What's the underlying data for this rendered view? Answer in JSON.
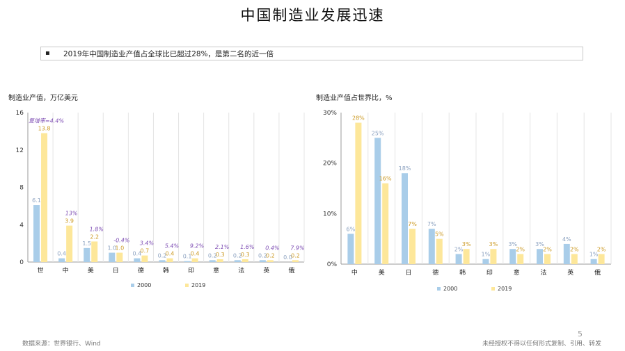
{
  "page": {
    "title": "中国制造业发展迅速",
    "note_bullet": "▪",
    "note": "2019年中国制造业产值占全球比已超过28%，是第二名的近一倍",
    "source": "数据来源：世界银行、Wind",
    "disclaimer": "未经授权不得以任何形式复制、引用、转发",
    "page_number": "5"
  },
  "colors": {
    "s2000": "#a9cde9",
    "s2019": "#fde79a",
    "label2000": "#8aa0bf",
    "label2019": "#cc9a24",
    "growth": "#7d4cb3",
    "axis": "#999999",
    "grid": "#e4e4e4"
  },
  "chart_data": [
    {
      "type": "bar",
      "title": "制造业产值，万亿美元",
      "categories": [
        "世",
        "中",
        "美",
        "日",
        "德",
        "韩",
        "印",
        "意",
        "法",
        "英",
        "俄"
      ],
      "series": [
        {
          "name": "2000",
          "values": [
            6.1,
            0.4,
            1.5,
            1.0,
            0.4,
            0.2,
            0.1,
            0.2,
            0.2,
            0.2,
            0.0
          ]
        },
        {
          "name": "2019",
          "values": [
            13.8,
            3.9,
            2.2,
            1.0,
            0.7,
            0.4,
            0.4,
            0.3,
            0.3,
            0.2,
            0.2
          ]
        }
      ],
      "value_labels_2000": [
        "6.1",
        "0.4",
        "1.5",
        "1.0",
        "0.4",
        "0.2",
        "0.1",
        "0.2",
        "0.2",
        "0.2",
        "0.0"
      ],
      "value_labels_2019": [
        "13.8",
        "3.9",
        "2.2",
        "1.0",
        "0.7",
        "0.4",
        "0.4",
        "0.3",
        "0.3",
        "0.2",
        "0.2"
      ],
      "growth_annotations": [
        "复增率=4.4%",
        "13%",
        "1.8%",
        "-0.4%",
        "3.4%",
        "5.4%",
        "9.2%",
        "2.1%",
        "1.6%",
        "0.4%",
        "7.9%"
      ],
      "yticks": [
        "0",
        "4",
        "8",
        "12",
        "16"
      ],
      "ylim": [
        0,
        16
      ],
      "legend_position": "bottom"
    },
    {
      "type": "bar",
      "title": "制造业产值占世界比，%",
      "categories": [
        "中",
        "美",
        "日",
        "德",
        "韩",
        "印",
        "意",
        "法",
        "英",
        "俄"
      ],
      "series": [
        {
          "name": "2000",
          "values": [
            6,
            25,
            18,
            7,
            2,
            1,
            3,
            3,
            4,
            1
          ]
        },
        {
          "name": "2019",
          "values": [
            28,
            16,
            7,
            5,
            3,
            3,
            2,
            2,
            2,
            2
          ]
        }
      ],
      "value_labels_2000": [
        "6%",
        "25%",
        "18%",
        "7%",
        "2%",
        "1%",
        "3%",
        "3%",
        "4%",
        "1%"
      ],
      "value_labels_2019": [
        "28%",
        "16%",
        "7%",
        "5%",
        "3%",
        "3%",
        "2%",
        "2%",
        "2%",
        "2%"
      ],
      "yticks": [
        "0%",
        "10%",
        "20%",
        "30%"
      ],
      "ylim": [
        0,
        30
      ],
      "legend_position": "bottom"
    }
  ]
}
